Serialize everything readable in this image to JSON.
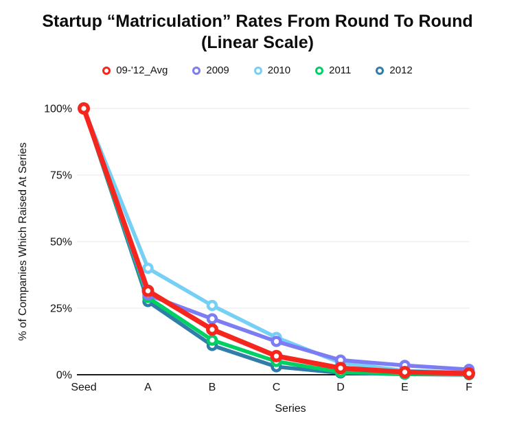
{
  "chart_data": {
    "type": "line",
    "title": "Startup “Matriculation” Rates From Round To Round",
    "subtitle": "(Linear Scale)",
    "xlabel": "Series",
    "ylabel": "% of Companies Which Raised At Series",
    "categories": [
      "Seed",
      "A",
      "B",
      "C",
      "D",
      "E",
      "F"
    ],
    "y_ticks": [
      {
        "value": 0,
        "label": "0%"
      },
      {
        "value": 25,
        "label": "25%"
      },
      {
        "value": 50,
        "label": "50%"
      },
      {
        "value": 75,
        "label": "75%"
      },
      {
        "value": 100,
        "label": "100%"
      }
    ],
    "ylim": [
      0,
      100
    ],
    "grid": true,
    "legend_position": "top",
    "series": [
      {
        "name": "09-'12_Avg",
        "color": "#f5261d",
        "values": [
          100,
          31.5,
          17,
          7,
          2.5,
          1,
          0.5
        ]
      },
      {
        "name": "2009",
        "color": "#7d7df3",
        "values": [
          100,
          30,
          21,
          12.5,
          5.5,
          3.5,
          2
        ]
      },
      {
        "name": "2010",
        "color": "#76cff5",
        "values": [
          100,
          40,
          26,
          14,
          4.5,
          1.5,
          0.8
        ]
      },
      {
        "name": "2011",
        "color": "#00cf64",
        "values": [
          100,
          29,
          13,
          5,
          1,
          0.3,
          0.1
        ]
      },
      {
        "name": "2012",
        "color": "#2f7da8",
        "values": [
          100,
          27.5,
          11,
          3,
          0.7,
          0.2,
          0
        ]
      }
    ]
  }
}
